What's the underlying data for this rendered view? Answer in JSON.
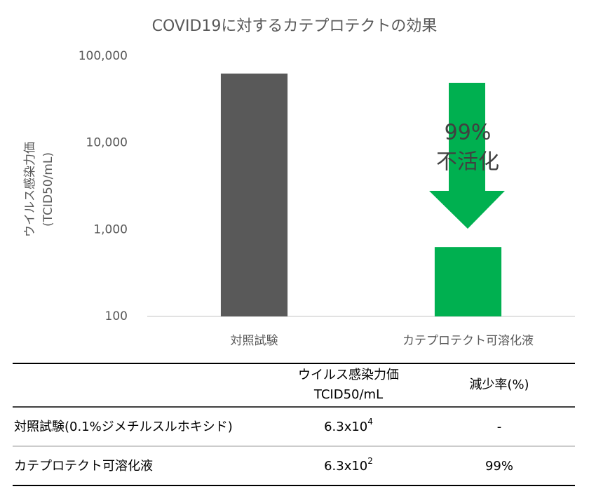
{
  "chart_data": {
    "type": "bar",
    "title": "COVID19に対するカテプロテクトの効果",
    "y_label": [
      "ウイルス感染力価",
      "(TCID50/mL)"
    ],
    "categories": [
      "対照試験",
      "カテプロテクト可溶化液"
    ],
    "values": [
      63000,
      630
    ],
    "colors": [
      "#595959",
      "#00b050"
    ],
    "log_scale": true,
    "ylim": [
      100,
      100000
    ],
    "yticks": [
      100,
      {
        "value": 1000,
        "label": "1,000"
      },
      {
        "value": 10000,
        "label": "10,000"
      },
      {
        "value": 100000,
        "label": "100,000"
      }
    ],
    "annotation": [
      "99%",
      "不活化"
    ]
  },
  "table": {
    "header": [
      "",
      [
        "ウイルス感染力価",
        "TCID50/mL"
      ],
      "減少率(%)"
    ],
    "rows": [
      [
        "対照試験(0.1%ジメチルスルホキシド)",
        {
          "base": "6.3x10",
          "exp": "4"
        },
        "-"
      ],
      [
        "カテプロテクト可溶化液",
        {
          "base": "6.3x10",
          "exp": "2"
        },
        "99%"
      ]
    ]
  }
}
